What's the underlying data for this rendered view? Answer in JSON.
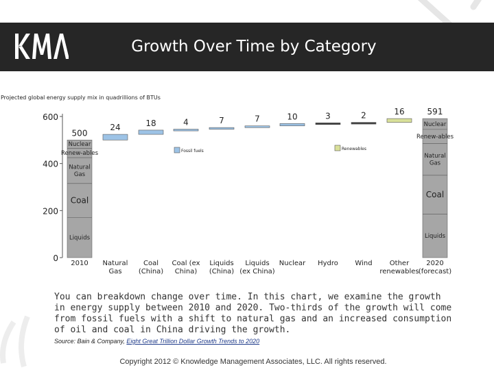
{
  "header": {
    "logo_text": "KMA",
    "title": "Growth Over Time by Category",
    "background": "#262626"
  },
  "chart_data": {
    "type": "bar",
    "subtitle": "Projected global energy supply mix in quadrillions of BTUs",
    "ylim": [
      0,
      600
    ],
    "y_ticks": [
      "0",
      "200",
      "400",
      "600"
    ],
    "grid": false,
    "categories": [
      "2010",
      "Natural Gas",
      "Coal (China)",
      "Coal (ex China)",
      "Liquids (China)",
      "Liquids (ex China)",
      "Nuclear",
      "Hydro",
      "Wind",
      "Other renewables",
      "2020 (forecast)"
    ],
    "category_lines": [
      [
        "2010"
      ],
      [
        "Natural",
        "Gas"
      ],
      [
        "Coal",
        "(China)"
      ],
      [
        "Coal (ex",
        "China)"
      ],
      [
        "Liquids",
        "(China)"
      ],
      [
        "Liquids",
        "(ex China)"
      ],
      [
        "Nuclear"
      ],
      [
        "Hydro"
      ],
      [
        "Wind"
      ],
      [
        "Other",
        "renewables"
      ],
      [
        "2020",
        "(forecast)"
      ]
    ],
    "totals": [
      500,
      591
    ],
    "increments": [
      {
        "category": "Natural Gas",
        "value": 24,
        "label": "24",
        "kind": "fossil"
      },
      {
        "category": "Coal (China)",
        "value": 18,
        "label": "18",
        "kind": "fossil"
      },
      {
        "category": "Coal (ex China)",
        "value": 4,
        "label": "4",
        "kind": "fossil"
      },
      {
        "category": "Liquids (China)",
        "value": 7,
        "label": "7",
        "kind": "fossil"
      },
      {
        "category": "Liquids (ex China)",
        "value": 7,
        "label": "7",
        "kind": "fossil"
      },
      {
        "category": "Nuclear",
        "value": 10,
        "label": "10",
        "kind": "fossil"
      },
      {
        "category": "Hydro",
        "value": 3,
        "label": "3",
        "kind": "other"
      },
      {
        "category": "Wind",
        "value": 2,
        "label": "2",
        "kind": "other"
      },
      {
        "category": "Other renewables",
        "value": 16,
        "label": "16",
        "kind": "renewable"
      }
    ],
    "segments_2010": [
      {
        "label": "Liquids",
        "value": 170
      },
      {
        "label": "Coal",
        "value": 145
      },
      {
        "label": "Natural Gas",
        "value": 110
      },
      {
        "label": "Renew-ables",
        "value": 40
      },
      {
        "label": "Nuclear",
        "value": 35
      }
    ],
    "segments_2020": [
      {
        "label": "Liquids",
        "value": 185
      },
      {
        "label": "Coal",
        "value": 165
      },
      {
        "label": "Natural Gas",
        "value": 135
      },
      {
        "label": "Renew-ables",
        "value": 60
      },
      {
        "label": "Nuclear",
        "value": 46
      }
    ],
    "legend": [
      {
        "label": "Fossil fuels",
        "color": "#9dc3e6"
      },
      {
        "label": "Renewables",
        "color": "#d9e09a"
      }
    ],
    "colors": {
      "total_bar": "#a6a6a6",
      "fossil": "#9dc3e6",
      "renewable": "#d9e09a",
      "other": "#404040"
    }
  },
  "body_text": "You can breakdown change over time.  In this chart, we examine the growth in energy supply between 2010 and 2020.  Two-thirds of the growth will come from fossil fuels with a shift to natural gas and an increased consumption of oil and coal in China driving the growth.",
  "source": {
    "prefix": "Source: Bain & Company, ",
    "link": "Eight Great Trillion Dollar Growth Trends to 2020"
  },
  "copyright": "Copyright 2012 © Knowledge Management Associates, LLC.  All rights reserved."
}
